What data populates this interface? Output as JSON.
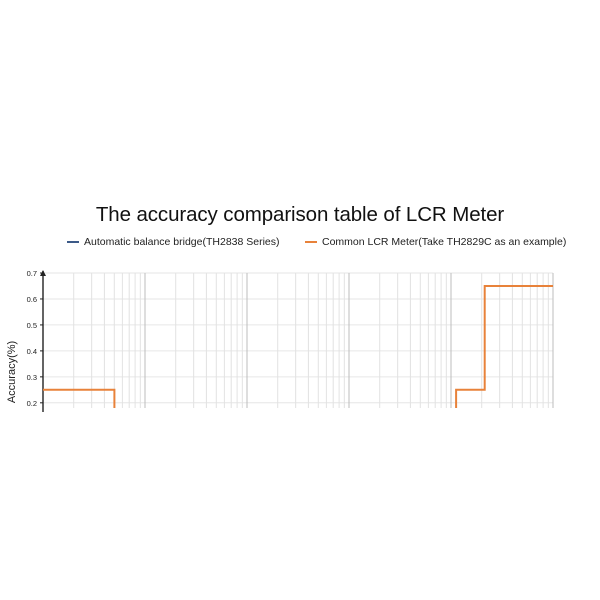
{
  "chart_data": {
    "type": "line",
    "title": "The accuracy comparison table of LCR Meter",
    "ylabel": "Accuracy(%)",
    "xlabel": "",
    "x_scale": "log",
    "x_decades": 5,
    "ylim": [
      0.18,
      0.7
    ],
    "yticks": [
      "0.7",
      "0.6",
      "0.5",
      "0.4",
      "0.3",
      "0.2"
    ],
    "grid": true,
    "legend_position": "top",
    "series": [
      {
        "name": "Automatic balance bridge(TH2838 Series)",
        "color": "#3c5a88",
        "points": []
      },
      {
        "name": "Common LCR Meter(Take TH2829C as an example)",
        "color": "#e8823a",
        "segments": [
          [
            [
              0,
              0.25
            ],
            [
              0.7,
              0.25
            ],
            [
              0.7,
              0.18
            ]
          ],
          [
            [
              4.05,
              0.18
            ],
            [
              4.05,
              0.25
            ],
            [
              4.33,
              0.25
            ],
            [
              4.33,
              0.65
            ],
            [
              5.0,
              0.65
            ]
          ]
        ]
      }
    ]
  }
}
